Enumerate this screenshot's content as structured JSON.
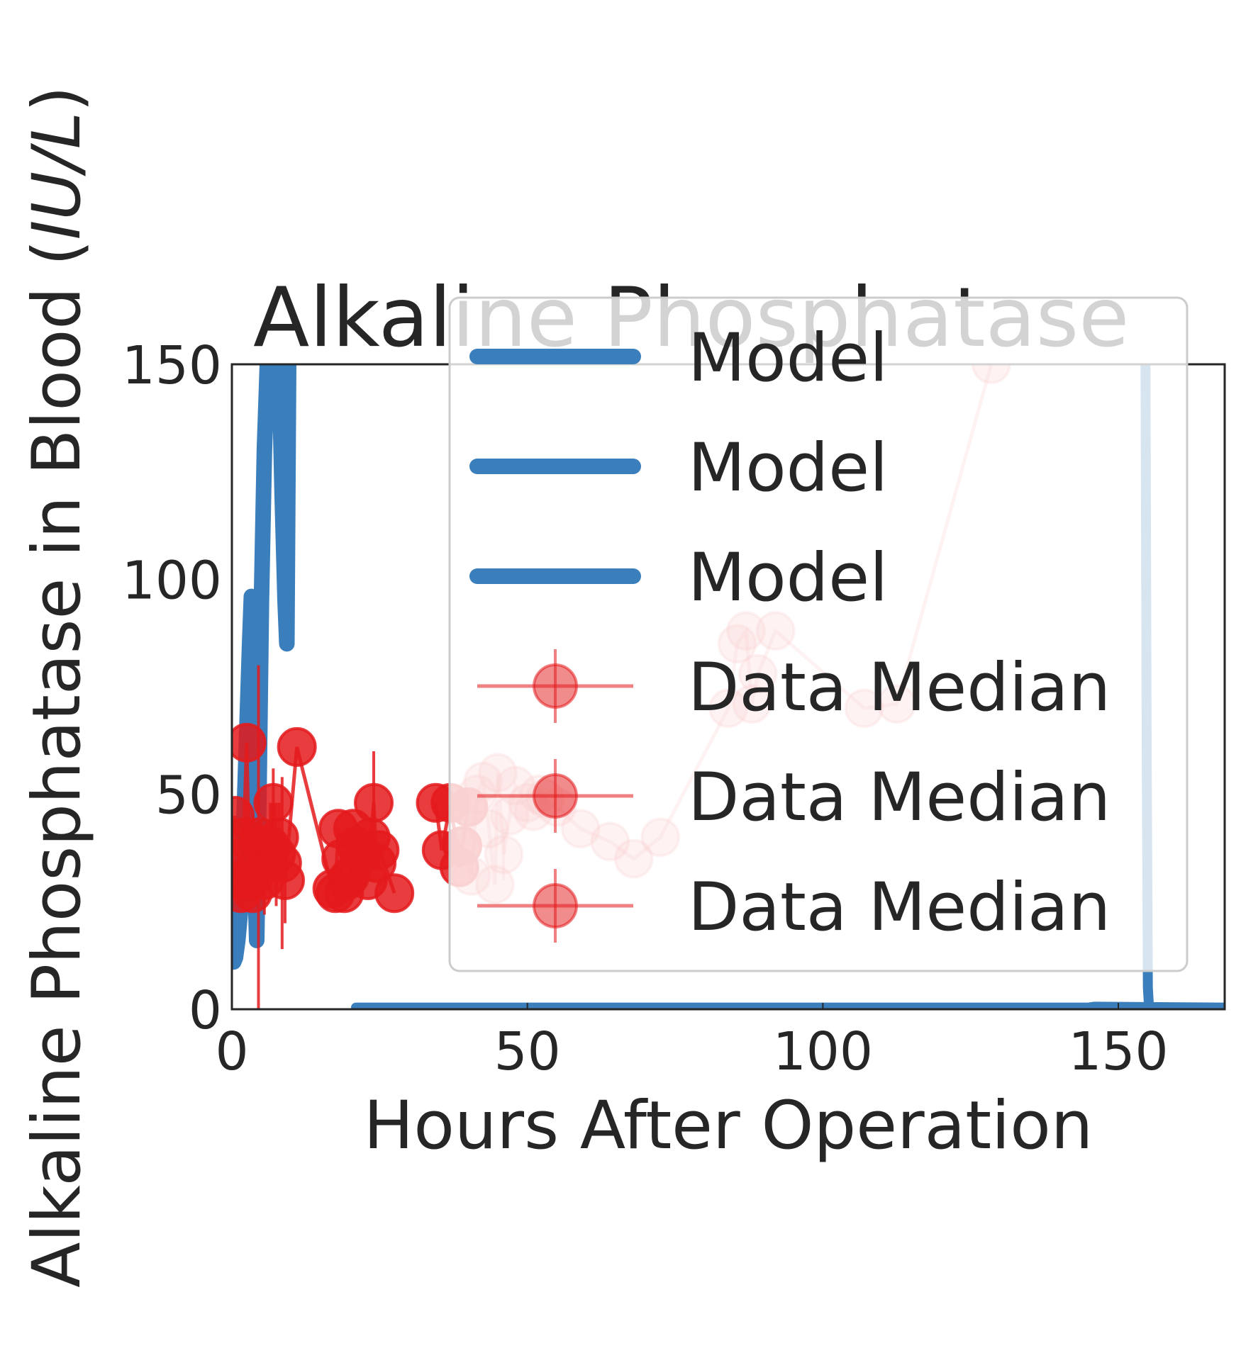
{
  "chart_data": {
    "type": "line",
    "title": "Alkaline Phosphatase",
    "xlabel": "Hours After Operation",
    "ylabel": "Alkaline Phosphatase in Blood (IU/L)",
    "ylabel_main": "Alkaline Phosphatase in Blood (",
    "ylabel_unit": "IU/L",
    "ylabel_close": ")",
    "xlim": [
      0,
      168
    ],
    "ylim": [
      0,
      150
    ],
    "xticks": [
      0,
      50,
      100,
      150
    ],
    "yticks": [
      0,
      50,
      100,
      150
    ],
    "grid": false,
    "legend_position": "upper-right",
    "colors": {
      "model": "#3a7ebb",
      "data": "#e41a1c",
      "axis": "#262626",
      "legend_border": "#cccccc"
    },
    "legend": [
      "Model",
      "Model",
      "Model",
      "Data Median",
      "Data Median",
      "Data Median"
    ],
    "series": [
      {
        "name": "Model",
        "kind": "model",
        "alpha": 1.0,
        "width": 22,
        "x": [
          0.3,
          0.6,
          1.0,
          1.4,
          1.7,
          2.0,
          2.3,
          2.6,
          3.0,
          3.3,
          3.6,
          3.9,
          4.2,
          4.6,
          5.0,
          5.5,
          6.0,
          6.5,
          7.0,
          7.5,
          8.0,
          8.5,
          9.0,
          9.3,
          9.6
        ],
        "y": [
          11,
          12,
          16,
          22,
          30,
          42,
          55,
          68,
          85,
          96,
          60,
          30,
          16,
          52,
          95,
          130,
          150,
          150,
          150,
          150,
          150,
          120,
          95,
          85,
          150
        ]
      },
      {
        "name": "Model",
        "kind": "model",
        "alpha": 1.0,
        "width": 14,
        "x": [
          21,
          40,
          80,
          145,
          146,
          168
        ],
        "y": [
          0.4,
          0.4,
          0.4,
          0.4,
          0.6,
          0.4
        ]
      },
      {
        "name": "Model",
        "kind": "model",
        "alpha": 1.0,
        "width": 14,
        "x": [
          154.6,
          154.8,
          155.0,
          155.2
        ],
        "y": [
          150,
          60,
          5,
          0.4
        ]
      },
      {
        "name": "Data Median",
        "kind": "data",
        "alpha": 0.85,
        "x": [
          0.2,
          0.5,
          1.0,
          1.5,
          2.0,
          2.5,
          3.0,
          3.5,
          4.0,
          4.5,
          5.0,
          5.5,
          6.0,
          6.5,
          7.0,
          7.5,
          8.0,
          8.5,
          9.0,
          11.0,
          17.0,
          17.5,
          18.0,
          18.5,
          19.0,
          19.5,
          20.0,
          20.5,
          21.0,
          22.0,
          23.0,
          23.5,
          24.0,
          24.5,
          25.0,
          27.5
        ],
        "y": [
          30,
          45,
          35,
          27,
          40,
          62,
          30,
          27,
          33,
          40,
          38,
          30,
          34,
          38,
          48,
          36,
          40,
          34,
          30,
          61,
          28,
          27,
          42,
          35,
          27,
          30,
          31,
          42,
          38,
          36,
          30,
          40,
          48,
          34,
          37,
          27
        ],
        "err": [
          [
            0,
            0
          ],
          [
            0,
            0
          ],
          [
            0,
            0
          ],
          [
            0,
            0
          ],
          [
            0,
            0
          ],
          [
            0,
            0
          ],
          [
            0,
            0
          ],
          [
            0,
            0
          ],
          [
            8,
            8
          ],
          [
            40,
            40
          ],
          [
            6,
            6
          ],
          [
            8,
            8
          ],
          [
            6,
            6
          ],
          [
            10,
            10
          ],
          [
            8,
            8
          ],
          [
            12,
            12
          ],
          [
            8,
            8
          ],
          [
            20,
            20
          ],
          [
            10,
            10
          ],
          [
            0,
            0
          ],
          [
            0,
            0
          ],
          [
            0,
            0
          ],
          [
            0,
            0
          ],
          [
            0,
            0
          ],
          [
            0,
            0
          ],
          [
            0,
            0
          ],
          [
            0,
            0
          ],
          [
            0,
            0
          ],
          [
            0,
            0
          ],
          [
            0,
            0
          ],
          [
            0,
            0
          ],
          [
            0,
            0
          ],
          [
            12,
            12
          ],
          [
            0,
            0
          ],
          [
            0,
            0
          ],
          [
            0,
            0
          ]
        ]
      },
      {
        "name": "Data Median",
        "kind": "data",
        "alpha": 0.85,
        "x": [
          34.5,
          35.5,
          37.0,
          38.5,
          39.0,
          40.0
        ],
        "y": [
          48,
          37,
          48,
          33,
          38,
          47
        ],
        "err": [
          [
            0,
            0
          ],
          [
            0,
            0
          ],
          [
            0,
            0
          ],
          [
            0,
            0
          ],
          [
            0,
            0
          ],
          [
            0,
            0
          ]
        ]
      },
      {
        "name": "Data Median",
        "kind": "data",
        "alpha": 0.28,
        "x": [
          39.0,
          40.5,
          41.5,
          42.5,
          43.5,
          44.5,
          45.0,
          46.0,
          47.0,
          48.0,
          50.0,
          51.0,
          52.0,
          53.0,
          55.0,
          59.0,
          64.0,
          68.0,
          72.5,
          84.0,
          85.5,
          87.0,
          88.0,
          89.0,
          92.0,
          107.0,
          112.5,
          128.5
        ],
        "y": [
          38,
          31,
          50,
          53,
          42,
          29,
          55,
          36,
          45,
          52,
          48,
          46,
          50,
          49,
          47,
          42,
          39,
          35,
          40,
          70,
          85,
          88,
          71,
          78,
          88,
          70,
          71,
          150
        ],
        "err": [
          [
            0,
            0
          ],
          [
            0,
            0
          ],
          [
            0,
            0
          ],
          [
            0,
            0
          ],
          [
            0,
            0
          ],
          [
            0,
            0
          ],
          [
            0,
            0
          ],
          [
            6,
            6
          ],
          [
            0,
            0
          ],
          [
            0,
            0
          ],
          [
            0,
            0
          ],
          [
            0,
            0
          ],
          [
            0,
            0
          ],
          [
            0,
            0
          ],
          [
            0,
            0
          ],
          [
            0,
            0
          ],
          [
            0,
            0
          ],
          [
            0,
            0
          ],
          [
            0,
            0
          ],
          [
            0,
            0
          ],
          [
            0,
            0
          ],
          [
            0,
            0
          ],
          [
            0,
            0
          ],
          [
            0,
            0
          ],
          [
            0,
            0
          ],
          [
            0,
            0
          ],
          [
            0,
            0
          ],
          [
            0,
            0
          ]
        ]
      }
    ]
  }
}
